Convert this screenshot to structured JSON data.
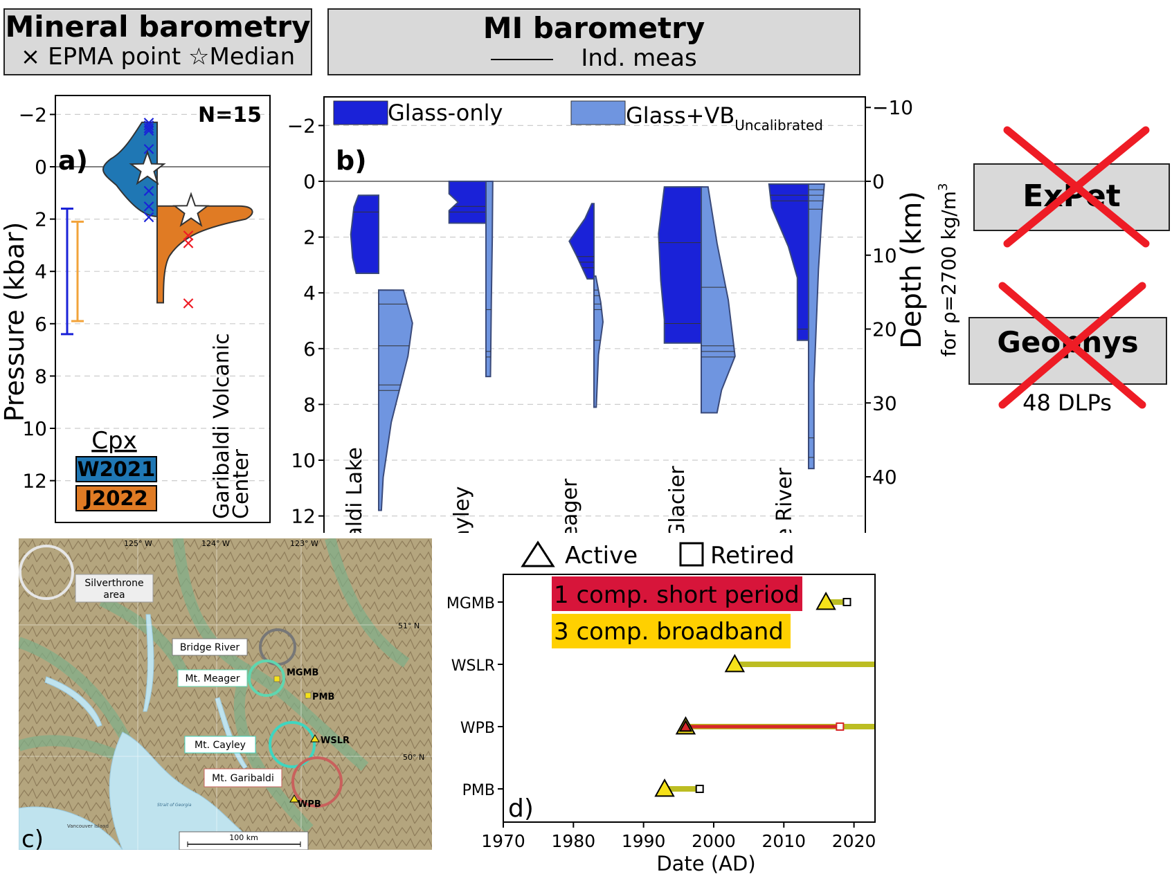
{
  "headers": {
    "mineral": {
      "title": "Mineral barometry",
      "legend_cross": "EPMA point",
      "legend_star": "Median"
    },
    "mi": {
      "title": "MI barometry",
      "legend_line": "Ind. meas"
    }
  },
  "side_boxes": [
    {
      "label": "ExPet",
      "subtext": "",
      "crossed": true
    },
    {
      "label": "Geophys",
      "subtext": "48 DLPs",
      "crossed": true
    }
  ],
  "colors": {
    "w2021": "#1f77b4",
    "j2022": "#e07b24",
    "glass": "#1a22d8",
    "glass_vb": "#6f95e0",
    "cross_red": "#ee1c25",
    "cross_blue": "#1a22d8",
    "yellow": "#f5e11a",
    "olive": "#bcbd22",
    "red_line": "#d62728",
    "short_period": "#d7153a",
    "broadband": "#ffd000"
  },
  "chart_data": [
    {
      "id": "a",
      "type": "violin",
      "panel_label": "a)",
      "annotation": "N=15",
      "ylabel": "Pressure (kbar)",
      "ylim": [
        12,
        -3
      ],
      "yticks": [
        -2,
        0,
        2,
        4,
        6,
        8,
        10,
        12
      ],
      "y_tick_labels": [
        "−2",
        "0",
        "2",
        "4",
        "6",
        "8",
        "10",
        "12"
      ],
      "xlabel_group": "Garibaldi Volcanic Center",
      "legend": {
        "title": "Cpx",
        "entries": [
          "W2021",
          "J2022"
        ]
      },
      "series": [
        {
          "name": "W2021",
          "range": [
            -1.7,
            1.9
          ],
          "points": [
            -1.7,
            -1.6,
            -1.5,
            -1.4,
            -0.7,
            0.9,
            1.5,
            1.9
          ],
          "median": 0.1
        },
        {
          "name": "J2022",
          "range": [
            1.5,
            5.2
          ],
          "points": [
            2.6,
            2.9,
            5.2
          ],
          "median": 1.7
        }
      ],
      "error_bars": [
        {
          "color": "blue",
          "range": [
            1.6,
            6.4
          ]
        },
        {
          "color": "orange",
          "range": [
            2.1,
            5.9
          ]
        }
      ]
    },
    {
      "id": "b",
      "type": "violin",
      "panel_label": "b)",
      "ylim": [
        12,
        -3
      ],
      "yticks": [
        -2,
        0,
        2,
        4,
        6,
        8,
        10,
        12
      ],
      "y_tick_labels": [
        "−2",
        "0",
        "2",
        "4",
        "6",
        "8",
        "10",
        "12"
      ],
      "y2label": "Depth (km)",
      "y2sublabel": "for ρ=2700 kg/m",
      "y2sublabel_sup": "3",
      "y2ticks": [
        -10,
        0,
        10,
        20,
        30,
        40
      ],
      "y2_tick_labels": [
        "−10",
        "0",
        "10",
        "20",
        "30",
        "40"
      ],
      "legend": [
        {
          "label": "Glass-only",
          "sub": ""
        },
        {
          "label": "Glass+VB",
          "sub": "Uncalibrated"
        }
      ],
      "categories": [
        "Garibaldi Lake",
        "Mt. Cayley",
        "Mt. Meager",
        "Salal Glacier",
        "Bridge River"
      ],
      "series": [
        {
          "name": "Glass-only",
          "ranges": [
            [
              0.5,
              3.3
            ],
            [
              0,
              1.5
            ],
            [
              0.8,
              3.5
            ],
            [
              0.2,
              5.8
            ],
            [
              0.1,
              5.7
            ]
          ],
          "lines": [
            [
              1.1
            ],
            [
              0.9,
              1.1
            ],
            [
              2.7,
              2.9,
              3.1
            ],
            [
              2.2,
              5.1
            ],
            [
              0.5,
              0.7,
              5.3
            ]
          ]
        },
        {
          "name": "Glass+VB",
          "ranges": [
            [
              3.9,
              11.8
            ],
            [
              0,
              7
            ],
            [
              3.4,
              8.1
            ],
            [
              0.2,
              8.3
            ],
            [
              0.1,
              10.3
            ]
          ],
          "lines": [
            [
              4.4,
              5.9,
              7.3,
              7.5
            ],
            [
              4.6,
              6.1,
              6.3
            ],
            [
              3.9,
              4.1,
              4.4,
              4.6,
              5.7
            ],
            [
              3.8,
              5.9,
              6.1,
              6.3
            ],
            [
              0.3,
              0.5,
              0.7,
              1.0,
              9.2,
              9.9
            ]
          ]
        }
      ]
    },
    {
      "id": "d",
      "type": "timeline",
      "panel_label": "d)",
      "xlabel": "Date (AD)",
      "xlim": [
        1970,
        2023
      ],
      "xticks": [
        1970,
        1980,
        1990,
        2000,
        2010,
        2020
      ],
      "stations": [
        "MGMB",
        "WSLR",
        "WPB",
        "PMB"
      ],
      "legend_markers": [
        "Active",
        "Retired"
      ],
      "legend_types": [
        "1 comp. short period",
        "3 comp. broadband"
      ],
      "records": [
        {
          "station": "MGMB",
          "type": "broadband",
          "start": 2016,
          "end": 2019,
          "active_marker": true,
          "retired_marker": true
        },
        {
          "station": "WSLR",
          "type": "broadband",
          "start": 2003,
          "end": 2023,
          "active_marker": true,
          "retired_marker": false
        },
        {
          "station": "WPB",
          "type": "broadband",
          "start": 1996,
          "end": 2023,
          "active_marker": true,
          "retired_marker": false
        },
        {
          "station": "WPB",
          "type": "short period",
          "start": 1996,
          "end": 2018,
          "active_marker": true,
          "retired_marker": true
        },
        {
          "station": "PMB",
          "type": "broadband",
          "start": 1993,
          "end": 1998,
          "active_marker": true,
          "retired_marker": true
        }
      ]
    }
  ],
  "map": {
    "panel_label": "c)",
    "lon_labels": [
      "125° W",
      "124° W",
      "123° W"
    ],
    "lat_labels": [
      "51° N",
      "50° N"
    ],
    "water_labels": [
      "Strait of Georgia",
      "Vancouver Island"
    ],
    "scale_label": "100 km",
    "areas": [
      "Silverthrone area",
      "Bridge River",
      "Mt. Meager",
      "Mt. Cayley",
      "Mt. Garibaldi"
    ],
    "stations": [
      "MGMB",
      "PMB",
      "WSLR",
      "WPB"
    ]
  }
}
